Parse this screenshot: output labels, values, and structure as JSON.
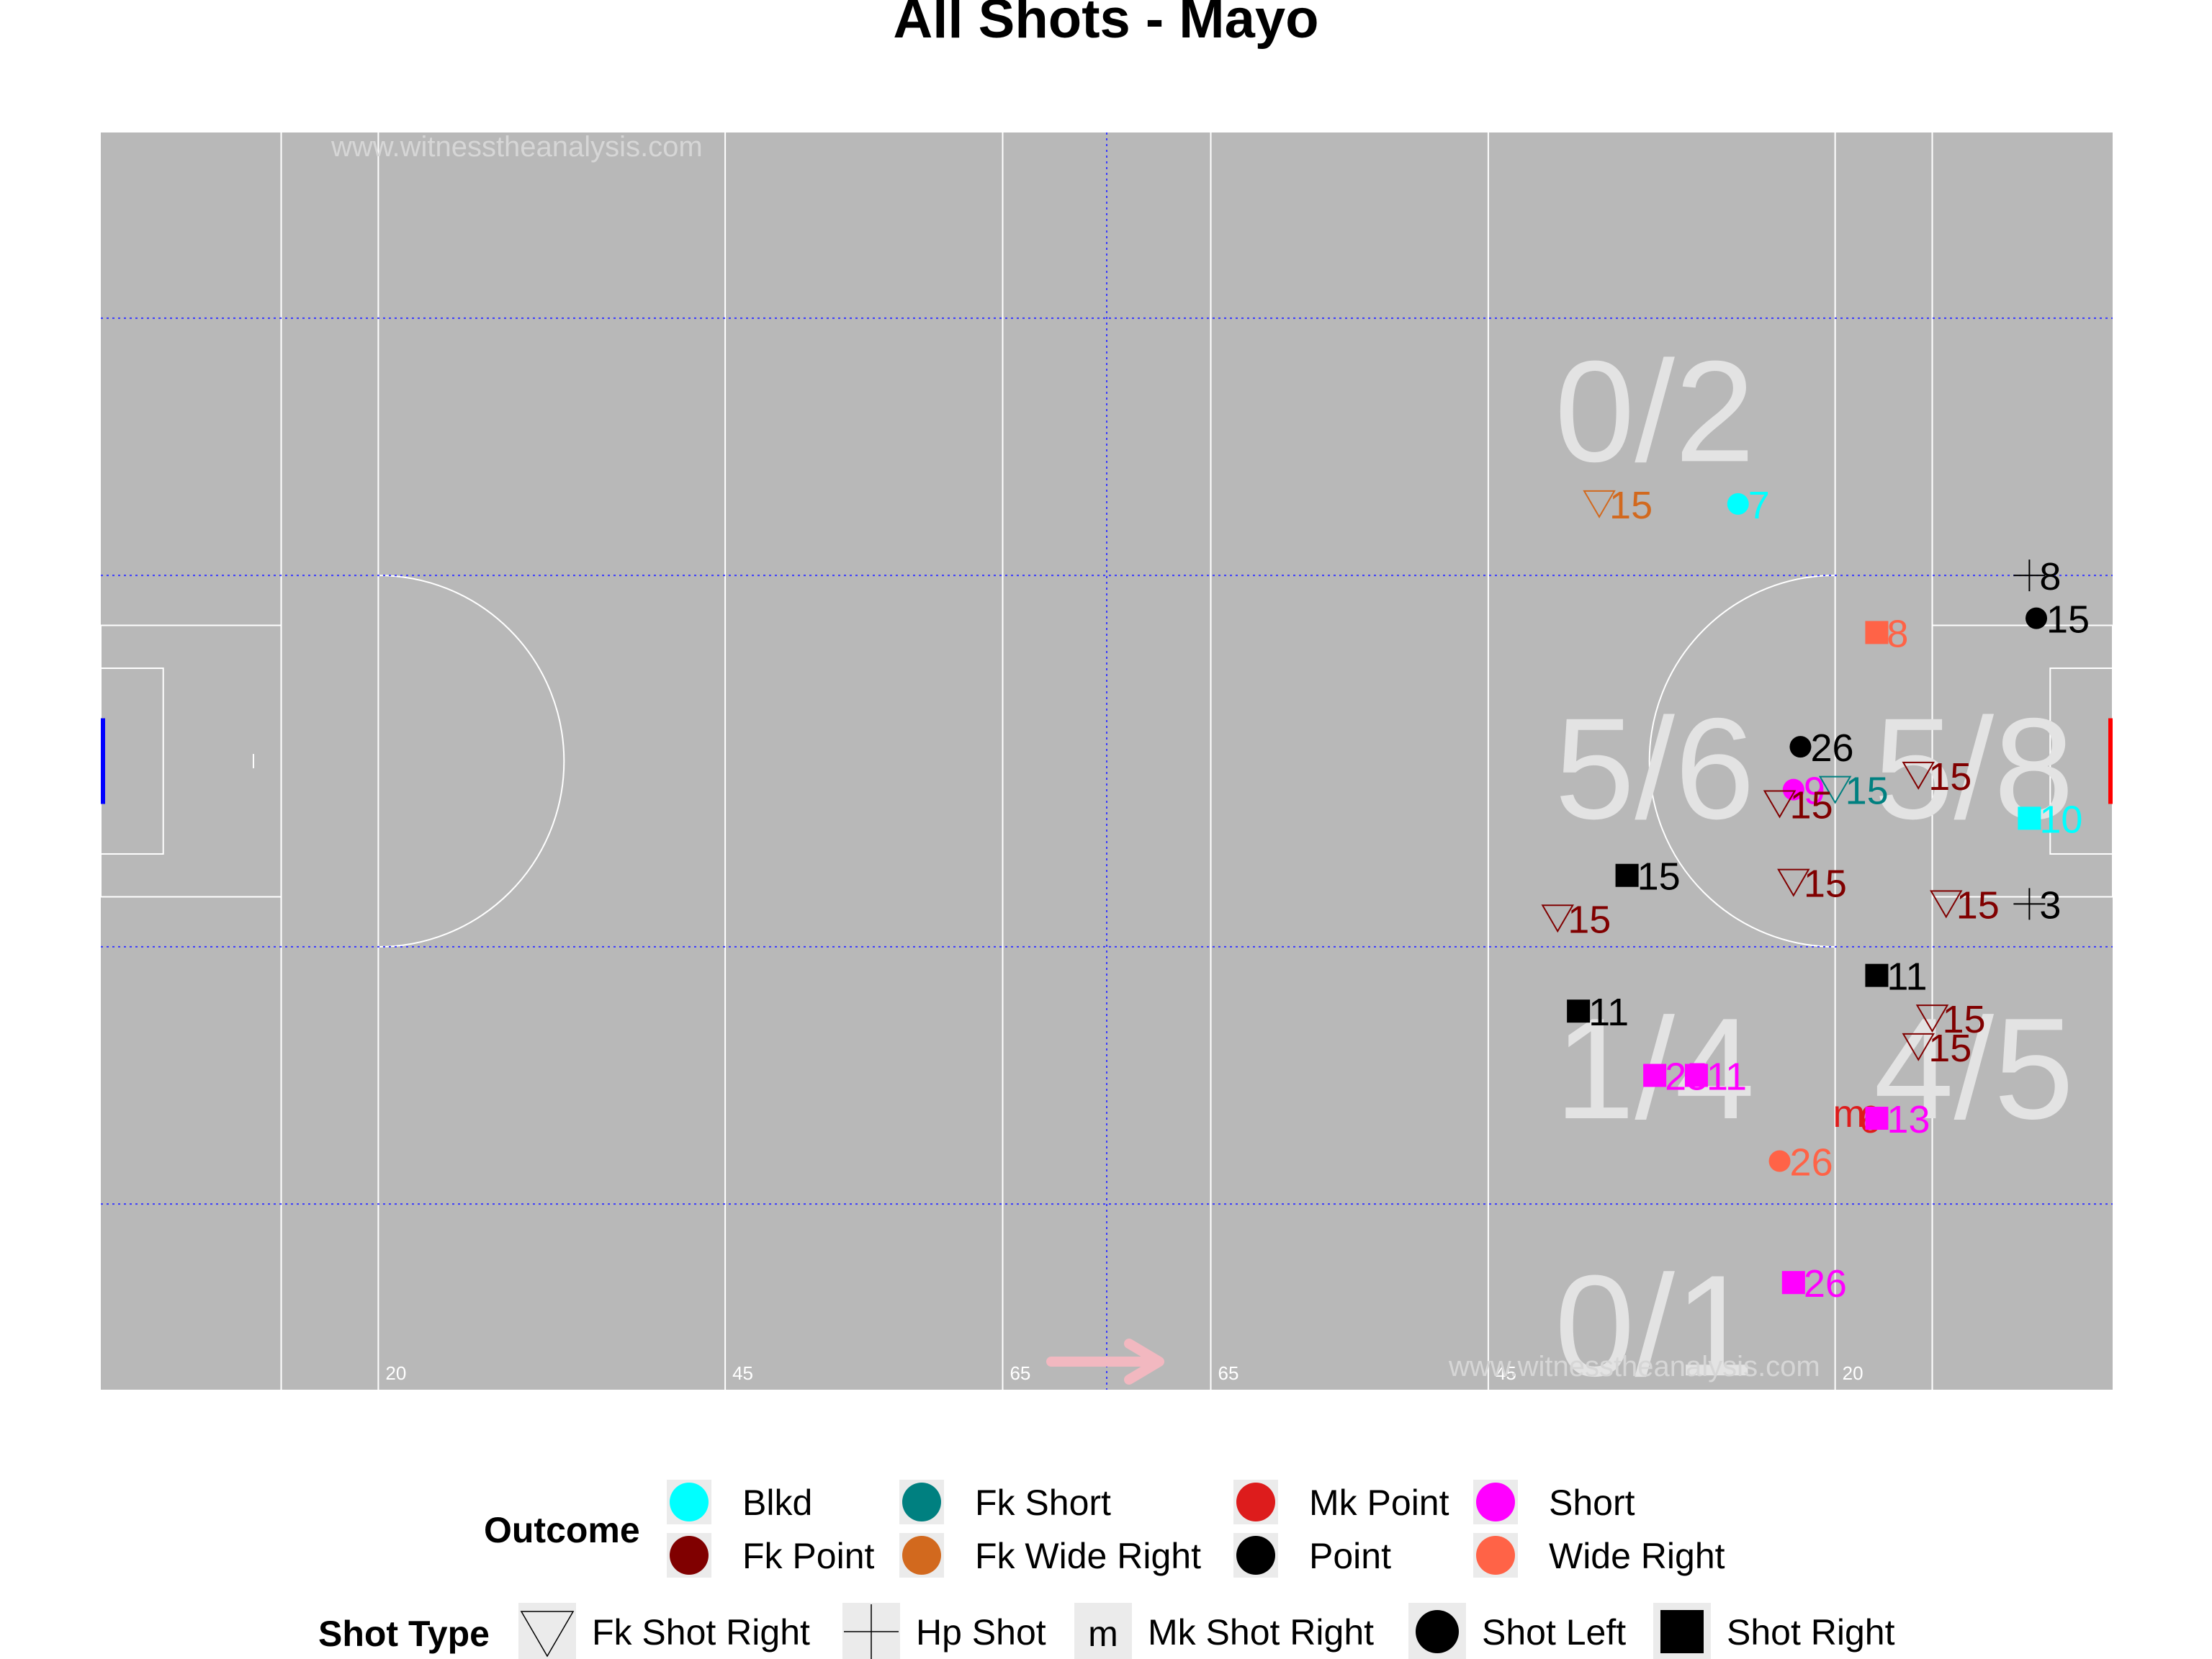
{
  "chart_data": {
    "type": "scatter",
    "title": "All Shots - Mayo",
    "watermark": "www.witnesstheanalysis.com",
    "xlim": [
      0,
      145
    ],
    "ylim": [
      0,
      88
    ],
    "grid": "dotted blue",
    "pitch_ticks": [
      {
        "x": 20,
        "label": "20"
      },
      {
        "x": 45,
        "label": "45"
      },
      {
        "x": 65,
        "label": "65"
      },
      {
        "x": 80,
        "label": "65"
      },
      {
        "x": 100,
        "label": "45"
      },
      {
        "x": 125,
        "label": "20"
      }
    ],
    "zone_labels": [
      {
        "x": 112,
        "y": 65,
        "text": "0/2"
      },
      {
        "x": 112,
        "y": 40,
        "text": "5/6"
      },
      {
        "x": 135,
        "y": 40,
        "text": "5/8"
      },
      {
        "x": 112,
        "y": 19,
        "text": "1/4"
      },
      {
        "x": 135,
        "y": 19,
        "text": "4/5"
      },
      {
        "x": 112,
        "y": 1,
        "text": "0/1"
      }
    ],
    "outcome_colors": {
      "Blkd": "#00ffff",
      "Fk Point": "#800000",
      "Fk Short": "#008080",
      "Fk Wide Right": "#d2691e",
      "Mk Point": "#dd1c1c",
      "Point": "#000000",
      "Short": "#ff00ff",
      "Wide Right": "#ff6347"
    },
    "shot_types": [
      "Fk Shot Right",
      "Hp Shot",
      "Mk Shot Right",
      "Shot Left",
      "Shot Right"
    ],
    "points": [
      {
        "x": 118,
        "y": 62,
        "outcome": "Blkd",
        "type": "Shot Left",
        "label": "7"
      },
      {
        "x": 108,
        "y": 62,
        "outcome": "Fk Wide Right",
        "type": "Fk Shot Right",
        "label": "15"
      },
      {
        "x": 139,
        "y": 57,
        "outcome": "Point",
        "type": "Hp Shot",
        "label": "8"
      },
      {
        "x": 139.5,
        "y": 54,
        "outcome": "Point",
        "type": "Shot Left",
        "label": "15"
      },
      {
        "x": 128,
        "y": 53,
        "outcome": "Wide Right",
        "type": "Shot Right",
        "label": "8"
      },
      {
        "x": 122.5,
        "y": 45,
        "outcome": "Point",
        "type": "Shot Left",
        "label": "26"
      },
      {
        "x": 131,
        "y": 43,
        "outcome": "Fk Point",
        "type": "Fk Shot Right",
        "label": "15"
      },
      {
        "x": 122,
        "y": 42,
        "outcome": "Short",
        "type": "Shot Left",
        "label": "9"
      },
      {
        "x": 125,
        "y": 42,
        "outcome": "Fk Short",
        "type": "Fk Shot Right",
        "label": "15"
      },
      {
        "x": 121,
        "y": 41,
        "outcome": "Fk Point",
        "type": "Fk Shot Right",
        "label": "15"
      },
      {
        "x": 139,
        "y": 40,
        "outcome": "Blkd",
        "type": "Shot Right",
        "label": "10"
      },
      {
        "x": 110,
        "y": 36,
        "outcome": "Point",
        "type": "Shot Right",
        "label": "15"
      },
      {
        "x": 122,
        "y": 35.5,
        "outcome": "Fk Point",
        "type": "Fk Shot Right",
        "label": "15"
      },
      {
        "x": 105,
        "y": 33,
        "outcome": "Fk Point",
        "type": "Fk Shot Right",
        "label": "15"
      },
      {
        "x": 133,
        "y": 34,
        "outcome": "Fk Point",
        "type": "Fk Shot Right",
        "label": "15"
      },
      {
        "x": 139,
        "y": 34,
        "outcome": "Point",
        "type": "Hp Shot",
        "label": "3"
      },
      {
        "x": 128,
        "y": 29,
        "outcome": "Point",
        "type": "Shot Right",
        "label": "11"
      },
      {
        "x": 106.5,
        "y": 26.5,
        "outcome": "Point",
        "type": "Shot Right",
        "label": "11"
      },
      {
        "x": 132,
        "y": 26,
        "outcome": "Fk Point",
        "type": "Fk Shot Right",
        "label": "15"
      },
      {
        "x": 131,
        "y": 24,
        "outcome": "Fk Point",
        "type": "Fk Shot Right",
        "label": "15"
      },
      {
        "x": 112,
        "y": 22,
        "outcome": "Short",
        "type": "Shot Right",
        "label": "25"
      },
      {
        "x": 115,
        "y": 22,
        "outcome": "Short",
        "type": "Shot Right",
        "label": "11"
      },
      {
        "x": 126,
        "y": 19,
        "outcome": "Mk Point",
        "type": "Mk Shot Right",
        "label": "6"
      },
      {
        "x": 128,
        "y": 19,
        "outcome": "Short",
        "type": "Shot Right",
        "label": "13"
      },
      {
        "x": 121,
        "y": 16,
        "outcome": "Wide Right",
        "type": "Shot Left",
        "label": "26"
      },
      {
        "x": 122,
        "y": 7.5,
        "outcome": "Short",
        "type": "Shot Right",
        "label": "26"
      }
    ]
  },
  "legend": {
    "outcome_title": "Outcome",
    "outcome_items": [
      {
        "label": "Blkd",
        "color": "#00ffff"
      },
      {
        "label": "Fk Point",
        "color": "#800000"
      },
      {
        "label": "Fk Short",
        "color": "#008080"
      },
      {
        "label": "Fk Wide Right",
        "color": "#d2691e"
      },
      {
        "label": "Mk Point",
        "color": "#dd1c1c"
      },
      {
        "label": "Point",
        "color": "#000000"
      },
      {
        "label": "Short",
        "color": "#ff00ff"
      },
      {
        "label": "Wide Right",
        "color": "#ff6347"
      }
    ],
    "shot_type_title": "Shot Type",
    "shot_type_items": [
      {
        "label": "Fk Shot Right",
        "symbol": "triangle-down"
      },
      {
        "label": "Hp Shot",
        "symbol": "cross"
      },
      {
        "label": "Mk Shot Right",
        "symbol": "m"
      },
      {
        "label": "Shot Left",
        "symbol": "circle"
      },
      {
        "label": "Shot Right",
        "symbol": "square"
      }
    ]
  }
}
